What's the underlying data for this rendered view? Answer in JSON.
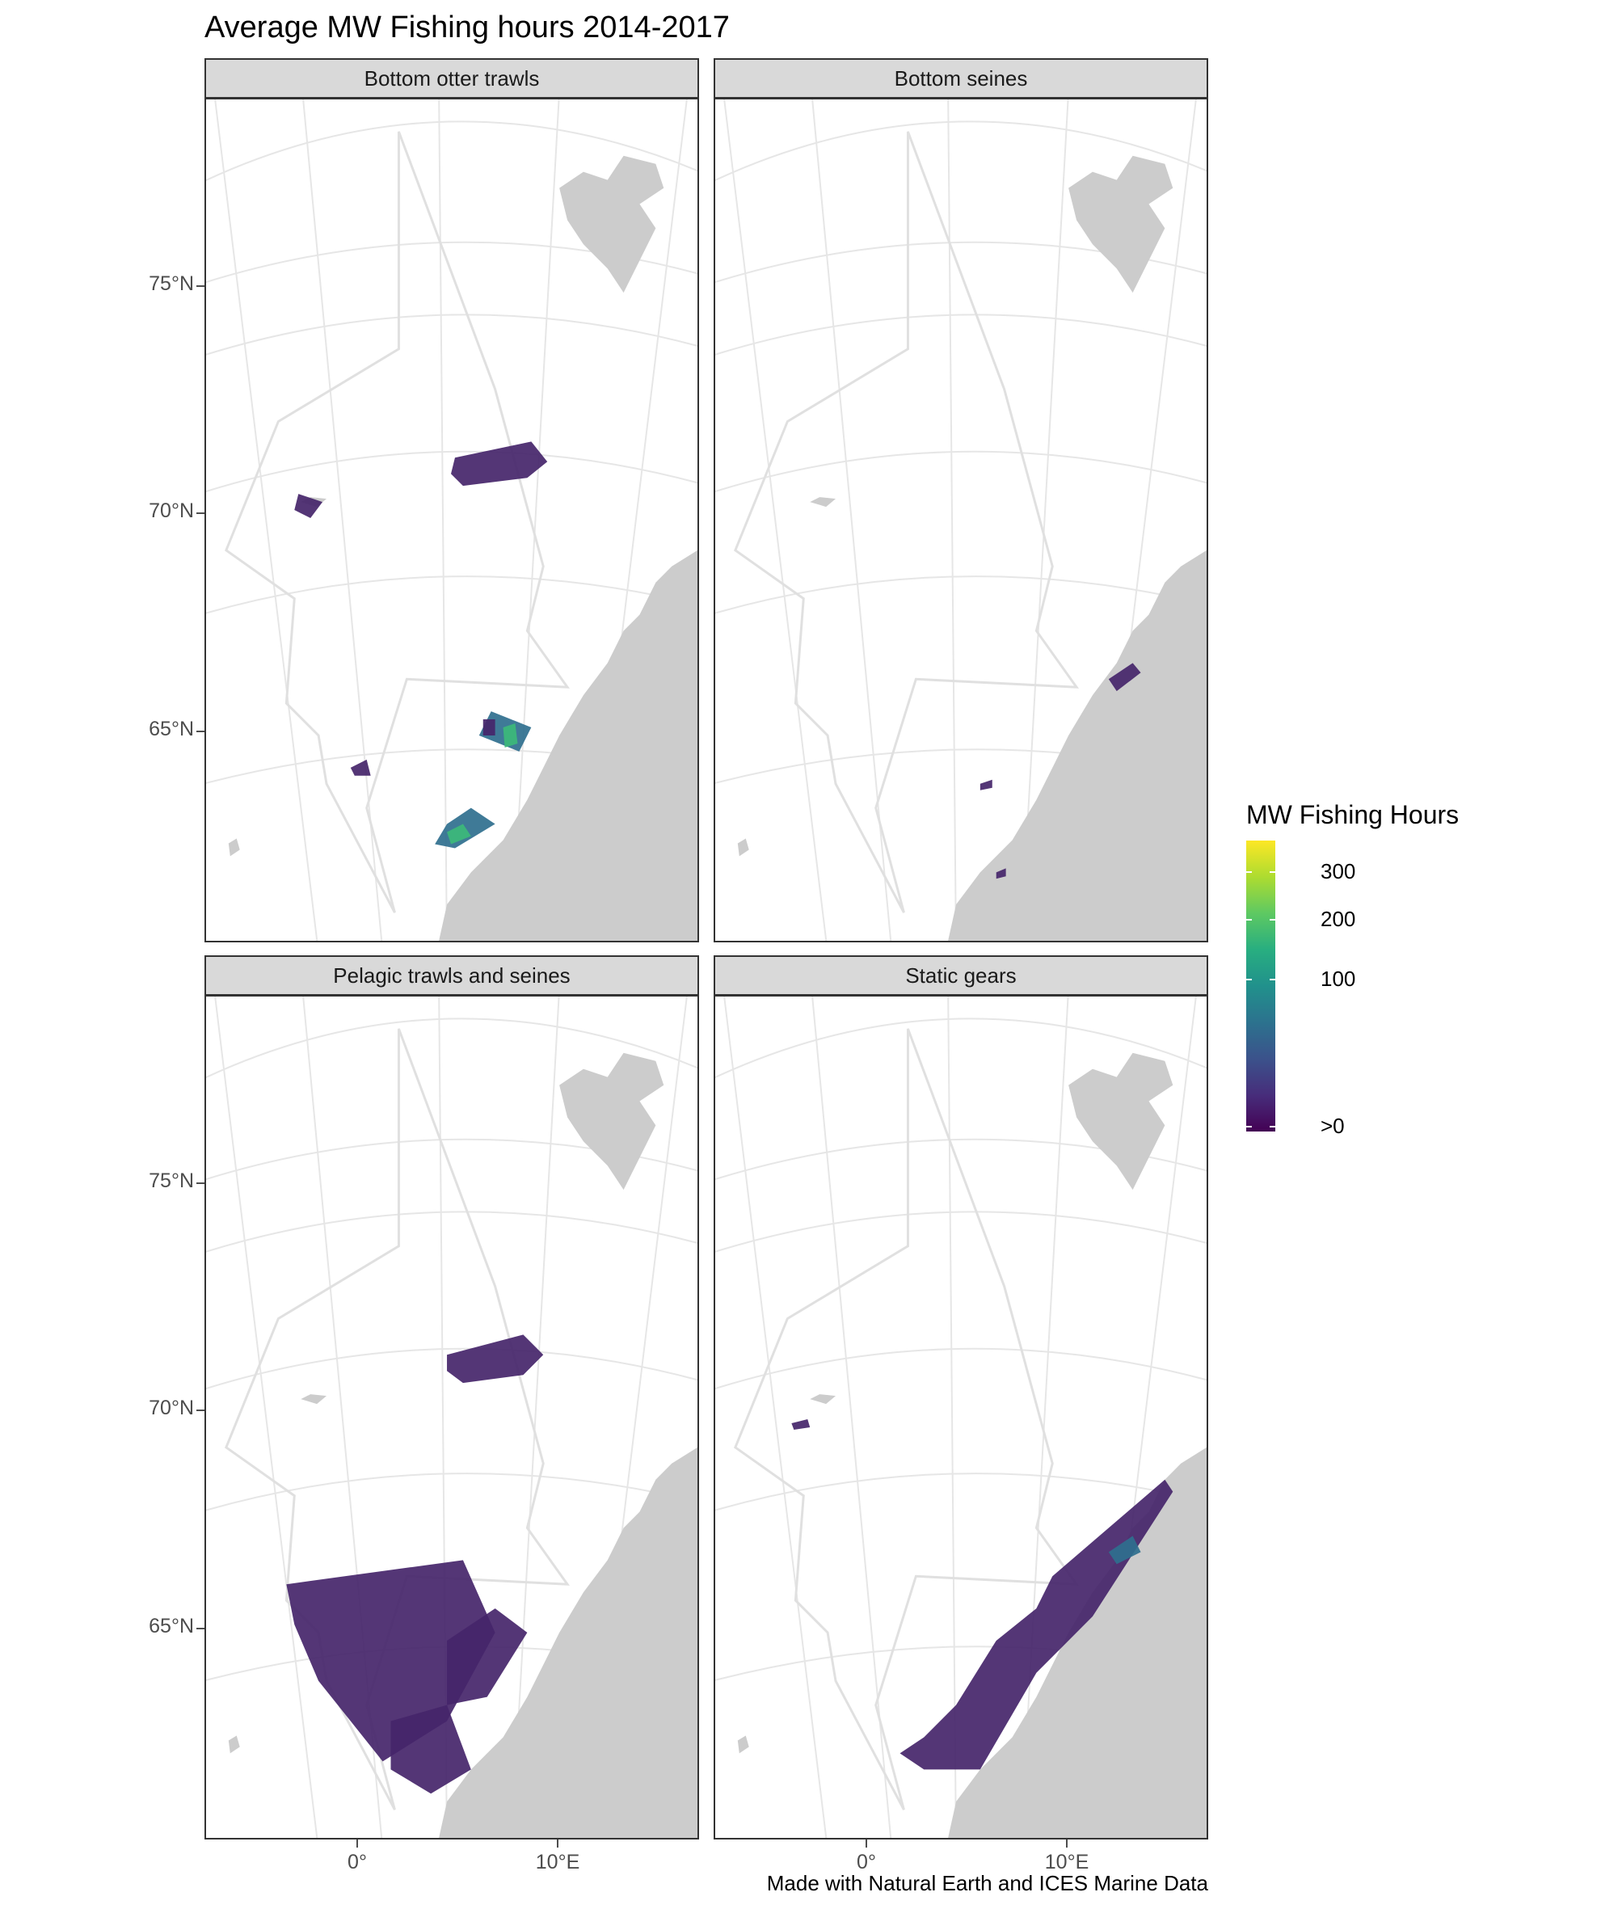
{
  "title": "Average MW Fishing hours 2014-2017",
  "panels": [
    {
      "name": "Bottom otter trawls"
    },
    {
      "name": "Bottom seines"
    },
    {
      "name": "Pelagic trawls and seines"
    },
    {
      "name": "Static gears"
    }
  ],
  "y_axis_labels": [
    "75°N",
    "70°N",
    "65°N"
  ],
  "x_axis_labels": [
    "0°",
    "10°E"
  ],
  "legend": {
    "title": "MW Fishing Hours",
    "labels": [
      "300",
      "200",
      "100",
      ">0"
    ],
    "colors": [
      "#440154",
      "#3b528b",
      "#21918c",
      "#5ec962",
      "#fde725"
    ]
  },
  "caption": "Made with Natural Earth and ICES Marine Data",
  "colors": {
    "land": "#cccccc",
    "graticule": "#e6e6e6",
    "boundary": "#e0e0e0",
    "low": "#45256a",
    "mid": "#2f6f8e",
    "high": "#3cb97a",
    "strip": "#d9d9d9"
  }
}
